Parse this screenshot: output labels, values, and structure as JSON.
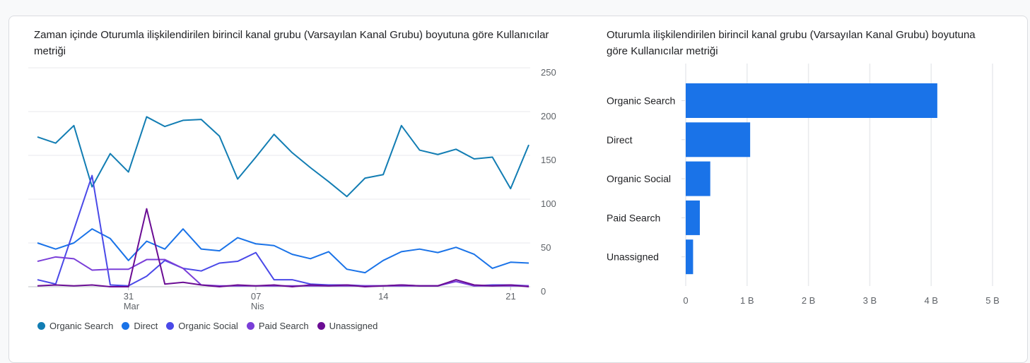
{
  "chart_data": [
    {
      "type": "line",
      "title": "Zaman içinde Oturumla ilişkilendirilen birincil kanal grubu (Varsayılan Kanal Grubu) boyutuna göre Kullanıcılar metriği",
      "x_count": 28,
      "x_ticks": [
        {
          "index": 5,
          "label": "31",
          "sub": "Mar"
        },
        {
          "index": 12,
          "label": "07",
          "sub": "Nis"
        },
        {
          "index": 19,
          "label": "14",
          "sub": ""
        },
        {
          "index": 26,
          "label": "21",
          "sub": ""
        }
      ],
      "y_ticks": [
        0,
        50,
        100,
        150,
        200,
        250
      ],
      "ylim": [
        0,
        250
      ],
      "y_axis_position": "right",
      "legend_position": "bottom",
      "series": [
        {
          "name": "Organic Search",
          "color": "#127db3",
          "values": [
            171,
            164,
            184,
            114,
            152,
            131,
            194,
            183,
            190,
            191,
            172,
            123,
            148,
            174,
            153,
            136,
            120,
            103,
            124,
            128,
            184,
            156,
            151,
            157,
            146,
            148,
            112,
            162
          ]
        },
        {
          "name": "Direct",
          "color": "#1a73e8",
          "values": [
            50,
            43,
            50,
            66,
            55,
            30,
            52,
            43,
            66,
            43,
            41,
            56,
            49,
            47,
            37,
            32,
            40,
            20,
            16,
            30,
            40,
            43,
            39,
            45,
            37,
            21,
            28,
            27
          ]
        },
        {
          "name": "Organic Social",
          "color": "#4a49e8",
          "values": [
            8,
            3,
            65,
            127,
            2,
            1,
            12,
            30,
            21,
            18,
            27,
            29,
            39,
            8,
            8,
            3,
            2,
            2,
            1,
            1,
            2,
            1,
            1,
            6,
            1,
            2,
            2,
            1
          ]
        },
        {
          "name": "Paid Search",
          "color": "#7a3ed8",
          "values": [
            29,
            34,
            32,
            19,
            20,
            20,
            31,
            31,
            21,
            2,
            1,
            1,
            1,
            1,
            1,
            1,
            1,
            1,
            1,
            1,
            1,
            1,
            1,
            6,
            1,
            1,
            1,
            1
          ]
        },
        {
          "name": "Unassigned",
          "color": "#6b0d94",
          "values": [
            1,
            2,
            1,
            2,
            0,
            0,
            89,
            3,
            5,
            2,
            0,
            2,
            1,
            2,
            0,
            2,
            1,
            2,
            0,
            1,
            2,
            1,
            1,
            8,
            2,
            1,
            2,
            0
          ]
        }
      ]
    },
    {
      "type": "bar",
      "orientation": "horizontal",
      "title": "Oturumla ilişkilendirilen birincil kanal grubu (Varsayılan Kanal Grubu) boyutuna göre Kullanıcılar metriği",
      "categories": [
        "Organic Search",
        "Direct",
        "Organic Social",
        "Paid Search",
        "Unassigned"
      ],
      "values": [
        4.1,
        1.05,
        0.4,
        0.23,
        0.12
      ],
      "unit": "B",
      "x_ticks": [
        "0",
        "1 B",
        "2 B",
        "3 B",
        "4 B",
        "5 B"
      ],
      "xlim": [
        0,
        5
      ],
      "color": "#1a73e8"
    }
  ]
}
